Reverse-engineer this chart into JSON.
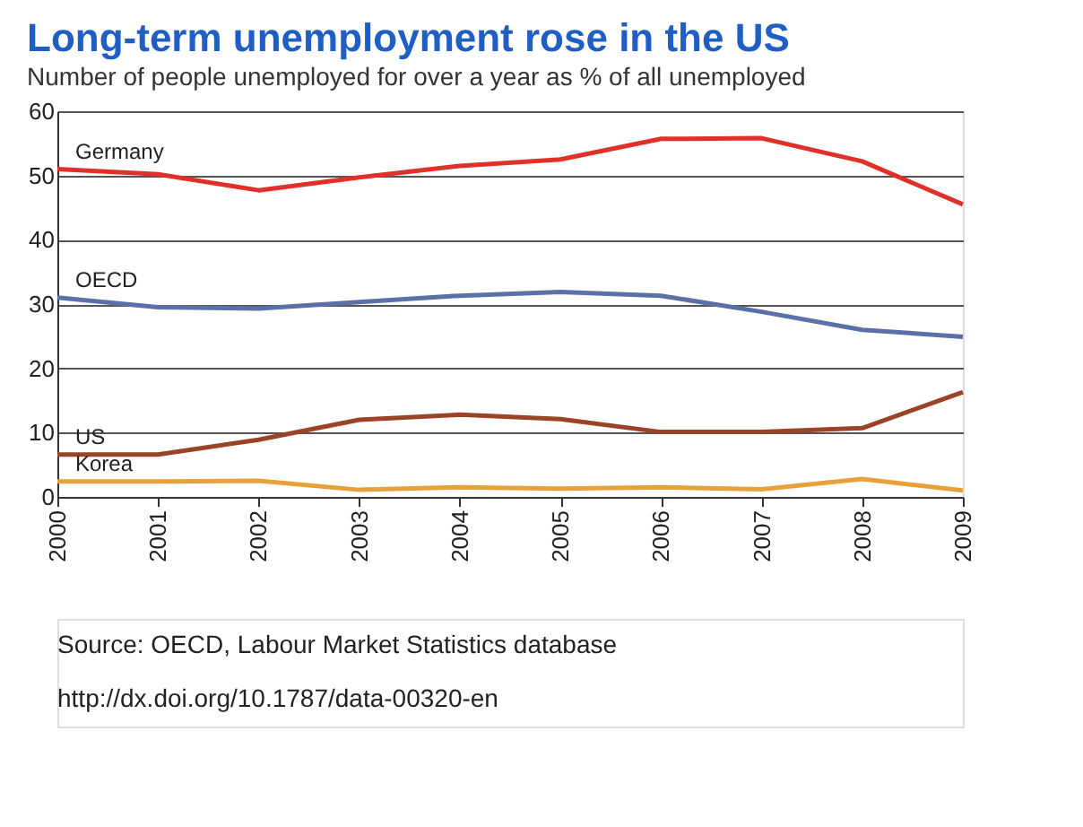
{
  "chart_data": {
    "type": "line",
    "title": "Long-term unemployment rose in the US",
    "subtitle": "Number of people unemployed for over a year as % of all unemployed",
    "categories": [
      "2000",
      "2001",
      "2002",
      "2003",
      "2004",
      "2005",
      "2006",
      "2007",
      "2008",
      "2009"
    ],
    "series": [
      {
        "name": "Germany",
        "color": "#e0302a",
        "values": [
          51,
          50.2,
          47.7,
          49.7,
          51.5,
          52.5,
          55.7,
          55.8,
          52.2,
          45.5
        ]
      },
      {
        "name": "OECD",
        "color": "#5b6fa8",
        "values": [
          31,
          29.5,
          29.3,
          30.3,
          31.3,
          31.9,
          31.3,
          28.8,
          26,
          24.9
        ]
      },
      {
        "name": "US",
        "color": "#9a4326",
        "values": [
          6.6,
          6.6,
          8.9,
          12,
          12.8,
          12.1,
          10.1,
          10.1,
          10.7,
          16.3
        ]
      },
      {
        "name": "Korea",
        "color": "#e8a03a",
        "values": [
          2.4,
          2.4,
          2.5,
          1.1,
          1.5,
          1.3,
          1.5,
          1.2,
          2.8,
          1.0
        ]
      }
    ],
    "ylim": [
      0,
      60
    ],
    "yticks": [
      0,
      10,
      20,
      30,
      40,
      50,
      60
    ],
    "grid": "y",
    "legend": false,
    "marker": "none",
    "line_style": "solid",
    "annotations": [
      "Source: OECD, Labour Market Statistics database",
      "http://dx.doi.org/10.1787/data-00320-en"
    ]
  }
}
